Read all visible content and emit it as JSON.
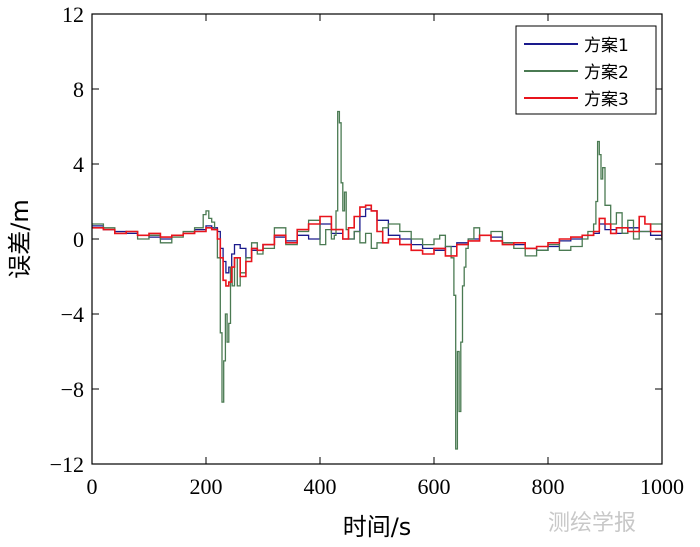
{
  "chart_data": {
    "type": "line",
    "xlabel": "时间/s",
    "ylabel": "误差/m",
    "xlim": [
      0,
      1000
    ],
    "ylim": [
      -12,
      12
    ],
    "xticks": [
      0,
      200,
      400,
      600,
      800,
      1000
    ],
    "yticks": [
      -12,
      -8,
      -4,
      0,
      4,
      8,
      12
    ],
    "ytick_labels": [
      "−12",
      "−8",
      "−4",
      "0",
      "4",
      "8",
      "12"
    ],
    "grid": false,
    "legend_position": "top-right",
    "series": [
      {
        "name": "方案1",
        "color": "#1a1a8c",
        "x": [
          0,
          20,
          40,
          60,
          80,
          100,
          120,
          140,
          160,
          180,
          200,
          210,
          220,
          225,
          230,
          235,
          240,
          245,
          250,
          260,
          270,
          280,
          300,
          320,
          340,
          360,
          380,
          400,
          420,
          440,
          460,
          470,
          480,
          490,
          500,
          520,
          540,
          560,
          580,
          600,
          620,
          640,
          660,
          680,
          700,
          720,
          740,
          760,
          780,
          800,
          820,
          840,
          860,
          880,
          890,
          900,
          920,
          940,
          960,
          980,
          1000
        ],
        "y": [
          0.7,
          0.5,
          0.4,
          0.3,
          0.2,
          0.1,
          0.0,
          0.2,
          0.3,
          0.5,
          0.7,
          0.6,
          0.4,
          -0.5,
          -1.2,
          -1.8,
          -1.5,
          -0.8,
          -0.3,
          -0.5,
          -1.0,
          -0.6,
          -0.3,
          0.1,
          -0.1,
          0.2,
          0.0,
          0.8,
          0.3,
          0.0,
          0.4,
          1.2,
          1.6,
          1.5,
          1.0,
          0.2,
          0.0,
          -0.3,
          -0.5,
          -0.6,
          -0.4,
          -0.2,
          0.0,
          0.2,
          0.1,
          -0.2,
          -0.3,
          -0.5,
          -0.6,
          -0.4,
          -0.1,
          0.0,
          0.2,
          0.3,
          0.8,
          0.5,
          0.3,
          0.6,
          0.4,
          0.2,
          0.0
        ]
      },
      {
        "name": "方案2",
        "color": "#4a7a52",
        "x": [
          0,
          20,
          40,
          60,
          80,
          100,
          120,
          140,
          160,
          180,
          195,
          200,
          205,
          210,
          215,
          220,
          225,
          228,
          231,
          234,
          237,
          240,
          243,
          246,
          250,
          255,
          260,
          270,
          280,
          290,
          300,
          320,
          340,
          360,
          380,
          400,
          410,
          420,
          425,
          428,
          431,
          434,
          437,
          440,
          443,
          446,
          450,
          460,
          470,
          480,
          490,
          500,
          510,
          520,
          540,
          560,
          580,
          600,
          610,
          620,
          630,
          635,
          638,
          641,
          644,
          647,
          650,
          653,
          656,
          660,
          670,
          680,
          700,
          720,
          740,
          760,
          780,
          800,
          820,
          840,
          860,
          870,
          880,
          884,
          887,
          890,
          893,
          896,
          900,
          910,
          920,
          930,
          940,
          950,
          960,
          980,
          1000
        ],
        "y": [
          0.8,
          0.6,
          0.3,
          0.4,
          0.0,
          0.2,
          -0.2,
          0.1,
          0.4,
          0.6,
          1.3,
          1.5,
          1.1,
          0.9,
          0.5,
          -1.0,
          -5.0,
          -8.7,
          -6.5,
          -4.0,
          -5.5,
          -4.5,
          -1.5,
          -2.5,
          -1.0,
          -2.5,
          -1.8,
          -1.0,
          -0.2,
          -0.8,
          -0.5,
          0.6,
          -0.3,
          0.4,
          1.0,
          -0.3,
          0.5,
          0.0,
          0.2,
          1.5,
          6.8,
          6.2,
          3.0,
          1.5,
          2.5,
          0.5,
          0.0,
          0.4,
          -0.2,
          0.3,
          -0.5,
          -0.2,
          0.6,
          0.8,
          0.4,
          0.0,
          -0.3,
          0.0,
          0.2,
          -0.4,
          -1.0,
          -3.0,
          -11.2,
          -6.0,
          -9.2,
          -5.5,
          -2.5,
          -1.5,
          -0.5,
          0.0,
          0.6,
          0.2,
          0.4,
          -0.2,
          -0.5,
          -0.9,
          -0.6,
          -0.3,
          -0.6,
          -0.4,
          0.0,
          0.4,
          0.8,
          2.0,
          5.2,
          4.5,
          3.2,
          3.8,
          1.8,
          0.8,
          1.4,
          0.3,
          1.0,
          0.0,
          0.4,
          0.8,
          -0.1
        ]
      },
      {
        "name": "方案3",
        "color": "#e8141c",
        "x": [
          0,
          20,
          40,
          60,
          80,
          100,
          120,
          140,
          160,
          180,
          200,
          210,
          220,
          225,
          230,
          235,
          240,
          245,
          250,
          260,
          270,
          280,
          290,
          300,
          320,
          340,
          360,
          380,
          400,
          420,
          440,
          450,
          460,
          470,
          480,
          490,
          500,
          510,
          520,
          540,
          560,
          580,
          600,
          620,
          640,
          660,
          680,
          700,
          720,
          740,
          760,
          780,
          800,
          820,
          840,
          860,
          880,
          890,
          900,
          910,
          920,
          940,
          960,
          970,
          980,
          1000
        ],
        "y": [
          0.6,
          0.5,
          0.3,
          0.4,
          0.2,
          0.3,
          0.1,
          0.2,
          0.3,
          0.4,
          0.6,
          0.5,
          0.0,
          -1.0,
          -2.2,
          -2.5,
          -2.3,
          -1.5,
          -1.0,
          -2.0,
          -1.2,
          -0.5,
          -0.6,
          -0.3,
          0.2,
          -0.2,
          0.5,
          0.8,
          1.2,
          0.5,
          0.0,
          0.6,
          1.2,
          1.7,
          1.8,
          1.5,
          0.4,
          -0.2,
          0.0,
          -0.3,
          -0.6,
          -0.8,
          -0.5,
          -0.9,
          -0.3,
          -0.1,
          0.2,
          -0.1,
          -0.3,
          -0.2,
          -0.5,
          -0.4,
          -0.2,
          0.0,
          0.1,
          0.2,
          0.4,
          1.1,
          0.8,
          0.3,
          0.6,
          0.4,
          1.2,
          0.8,
          0.4,
          0.1
        ]
      }
    ]
  },
  "watermark": "测绘学报"
}
